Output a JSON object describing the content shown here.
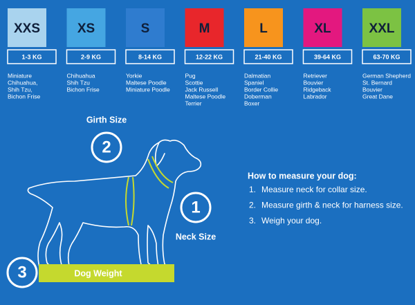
{
  "sizes": [
    {
      "size": "XXS",
      "color": "#a9d3ee",
      "weight": "1-3 KG",
      "breeds": [
        "Miniature",
        "Chihuahua,",
        "Shih Tzu,",
        "Bichon Frise"
      ]
    },
    {
      "size": "XS",
      "color": "#45a6e2",
      "weight": "2-9 KG",
      "breeds": [
        "Chihuahua",
        "Shih Tzu",
        "Bichon Frise"
      ]
    },
    {
      "size": "S",
      "color": "#2f7ccf",
      "weight": "8-14 KG",
      "breeds": [
        "Yorkie",
        "Maltese Poodle",
        "Miniature Poodle"
      ]
    },
    {
      "size": "M",
      "color": "#e8262b",
      "weight": "12-22 KG",
      "breeds": [
        "Pug",
        "Scottie",
        "Jack Russell",
        "Maltese Poodle",
        "Terrier"
      ]
    },
    {
      "size": "L",
      "color": "#f7941d",
      "weight": "21-40 KG",
      "breeds": [
        "Dalmatian",
        "Spaniel",
        "Border Collie",
        "Doberman",
        "Boxer"
      ]
    },
    {
      "size": "XL",
      "color": "#e3187f",
      "weight": "39-64 KG",
      "breeds": [
        "Retriever",
        "Bouvier",
        "Ridgeback",
        "Labrador"
      ]
    },
    {
      "size": "XXL",
      "color": "#7cc243",
      "weight": "63-70 KG",
      "breeds": [
        "German Shepherd",
        "St. Bernard",
        "Bouvier",
        "Great Dane"
      ]
    }
  ],
  "diagram": {
    "girth": {
      "number": "2",
      "label": "Girth Size"
    },
    "neck": {
      "number": "1",
      "label": "Neck Size"
    },
    "weight": {
      "number": "3",
      "label": "Dog Weight"
    }
  },
  "instructions": {
    "heading": "How to measure your dog:",
    "items": [
      {
        "number": "1.",
        "text": "Measure neck for collar size."
      },
      {
        "number": "2.",
        "text": "Measure girth & neck for harness size."
      },
      {
        "number": "3.",
        "text": "Weigh your dog."
      }
    ]
  }
}
